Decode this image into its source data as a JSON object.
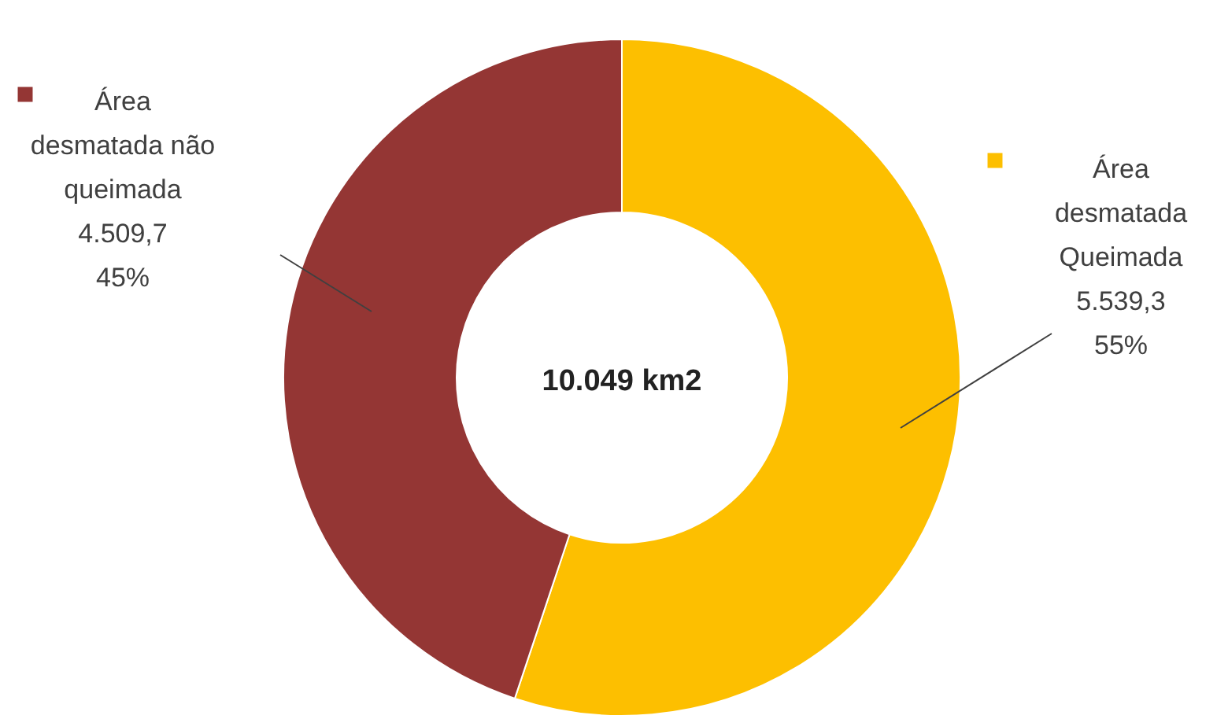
{
  "chart_data": {
    "type": "donut",
    "categories": [
      "Área desmatada Queimada",
      "Área desmatada não queimada"
    ],
    "values": [
      5539.3,
      4509.7
    ],
    "colors": [
      "#fdbf00",
      "#943634"
    ],
    "value_labels": [
      "5.539,3\n55%",
      "4.509,7\n45%"
    ],
    "annotations": [
      "10.049 km2"
    ]
  }
}
